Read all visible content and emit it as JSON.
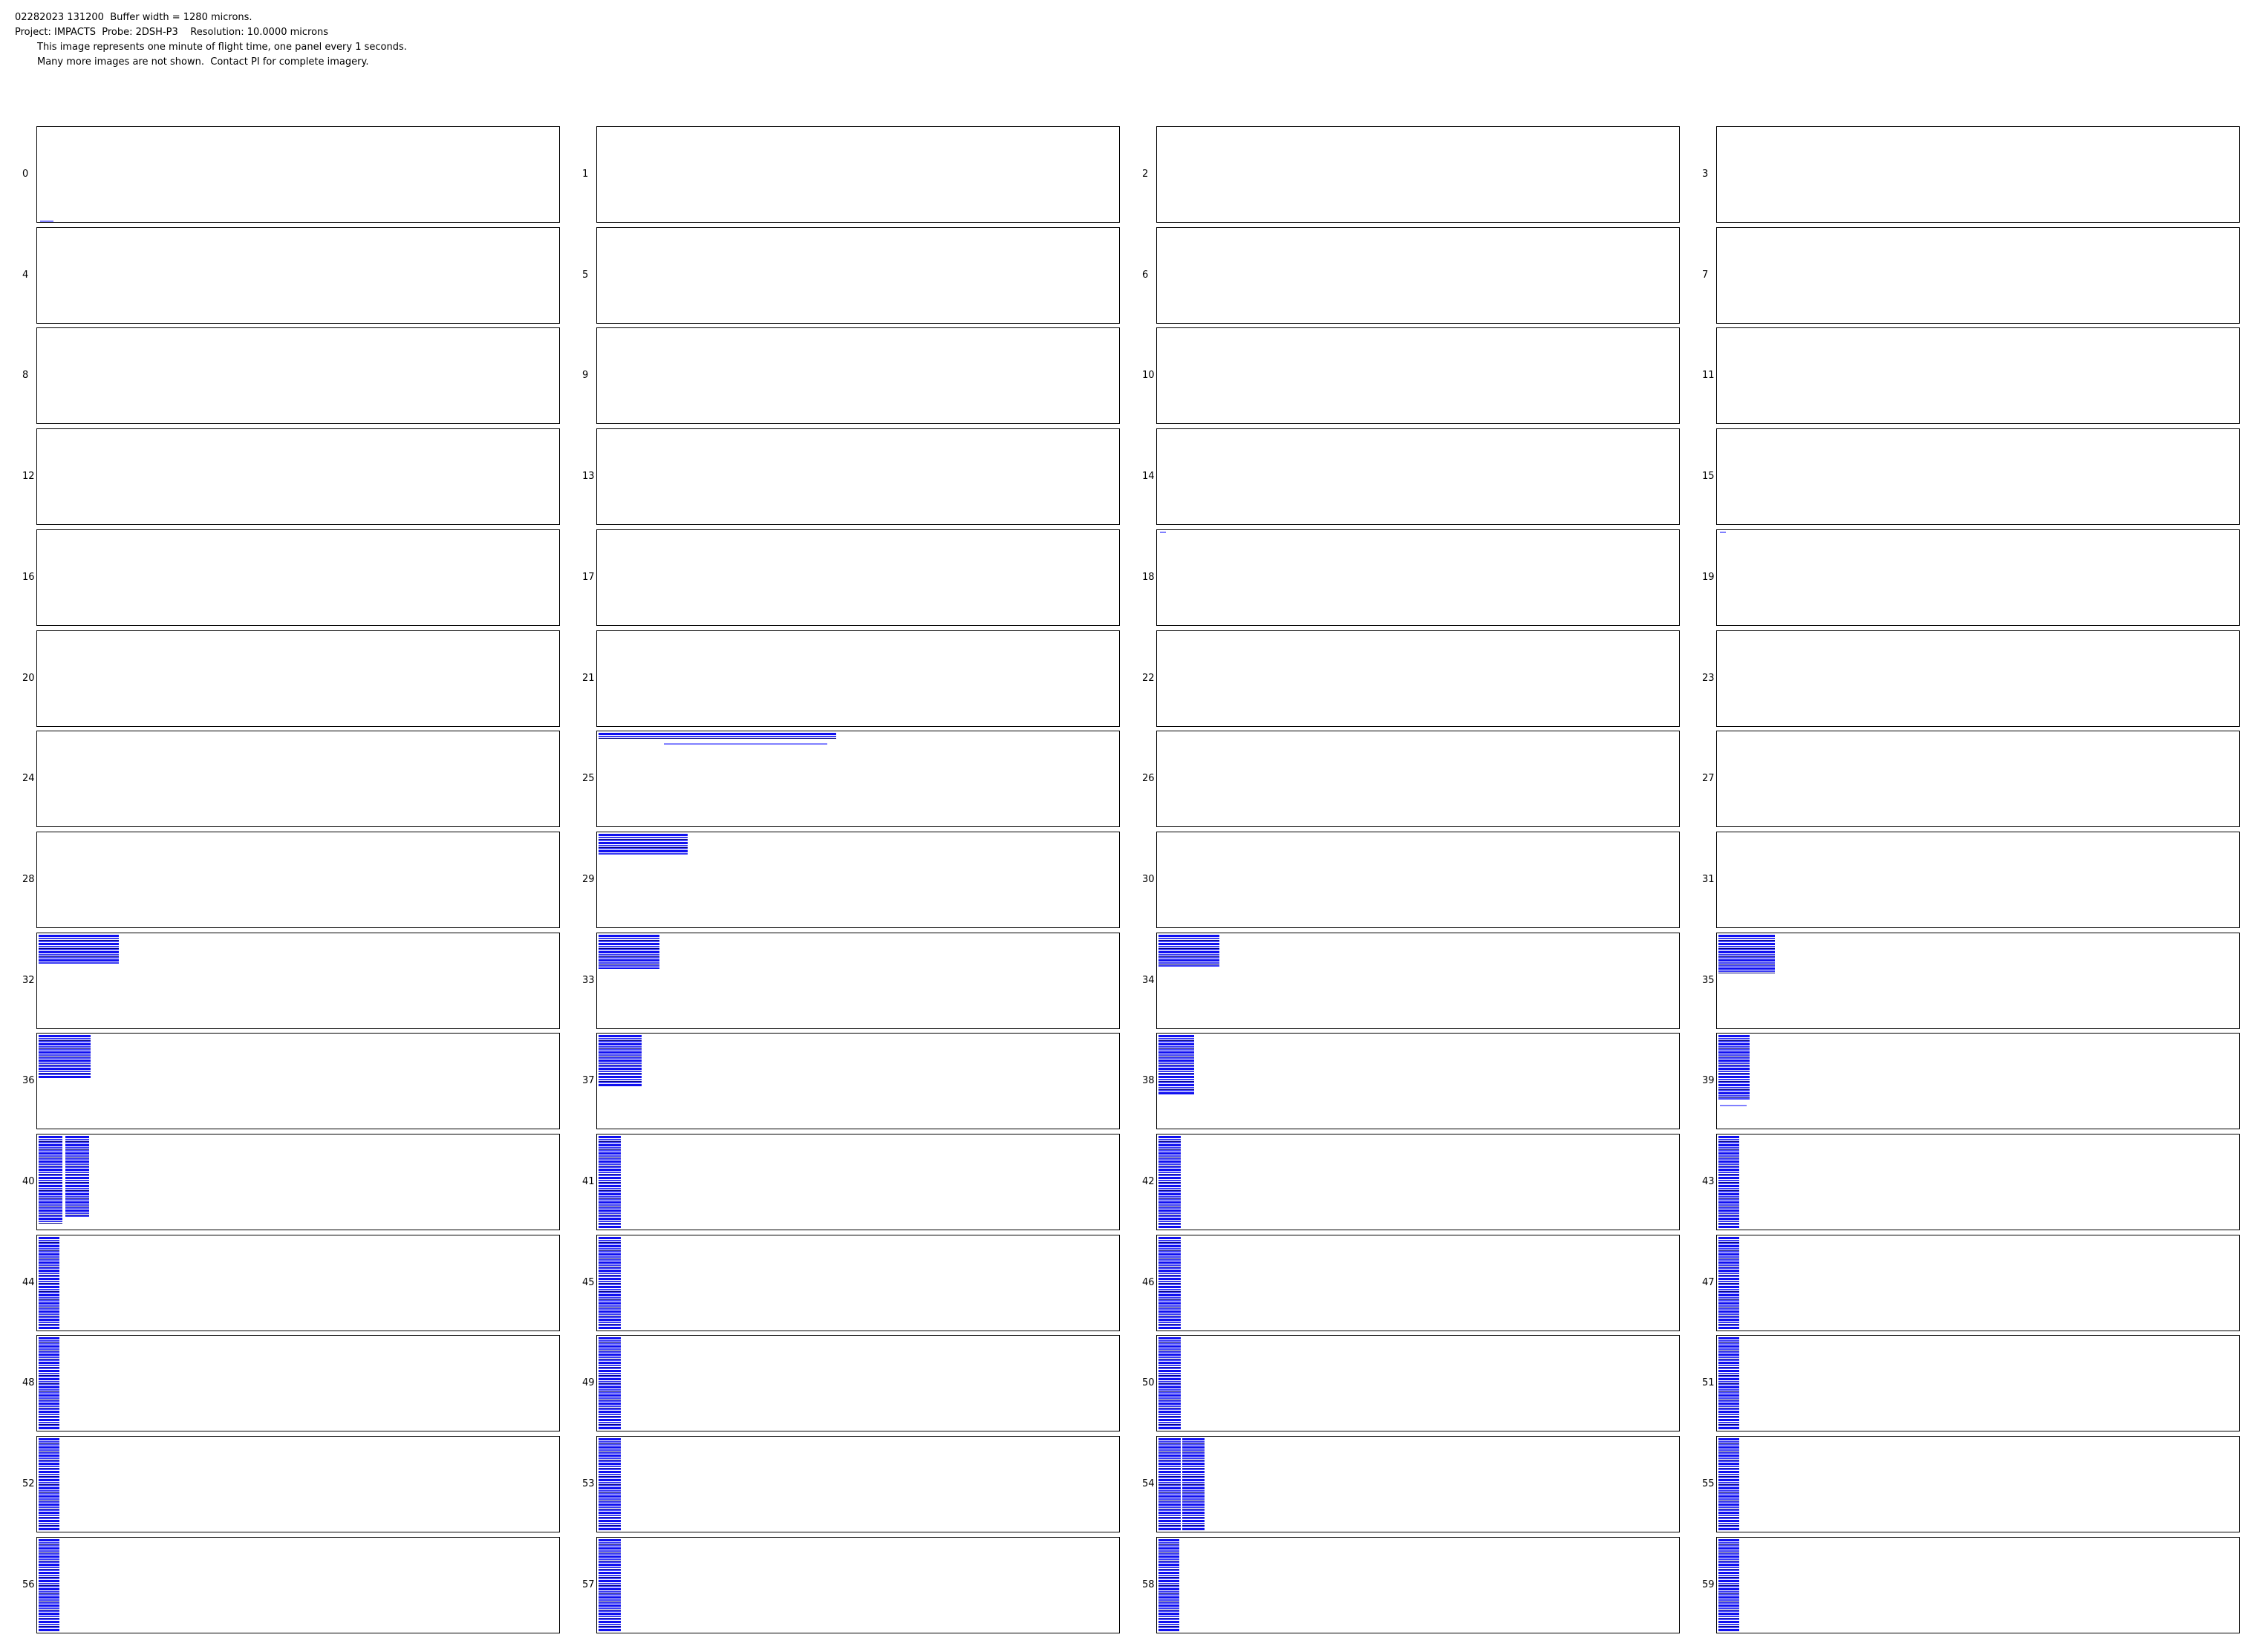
{
  "header": {
    "line1": "02282023 131200  Buffer width = 1280 microns.",
    "line2": "Project: IMPACTS  Probe: 2DSH-P3    Resolution: 10.0000 microns",
    "line3": "This image represents one minute of flight time, one panel every 1 seconds.",
    "line4": "Many more images are not shown.  Contact PI for complete imagery."
  },
  "panels": {
    "count": 60,
    "columns": 4,
    "labels": [
      "0",
      "1",
      "2",
      "3",
      "4",
      "5",
      "6",
      "7",
      "8",
      "9",
      "10",
      "11",
      "12",
      "13",
      "14",
      "15",
      "16",
      "17",
      "18",
      "19",
      "20",
      "21",
      "22",
      "23",
      "24",
      "25",
      "26",
      "27",
      "28",
      "29",
      "30",
      "31",
      "32",
      "33",
      "34",
      "35",
      "36",
      "37",
      "38",
      "39",
      "40",
      "41",
      "42",
      "43",
      "44",
      "45",
      "46",
      "47",
      "48",
      "49",
      "50",
      "51",
      "52",
      "53",
      "54",
      "55",
      "56",
      "57",
      "58",
      "59"
    ]
  },
  "colors": {
    "particle": "#1010f0",
    "particle_dark": "#000080",
    "frame": "#000000"
  }
}
